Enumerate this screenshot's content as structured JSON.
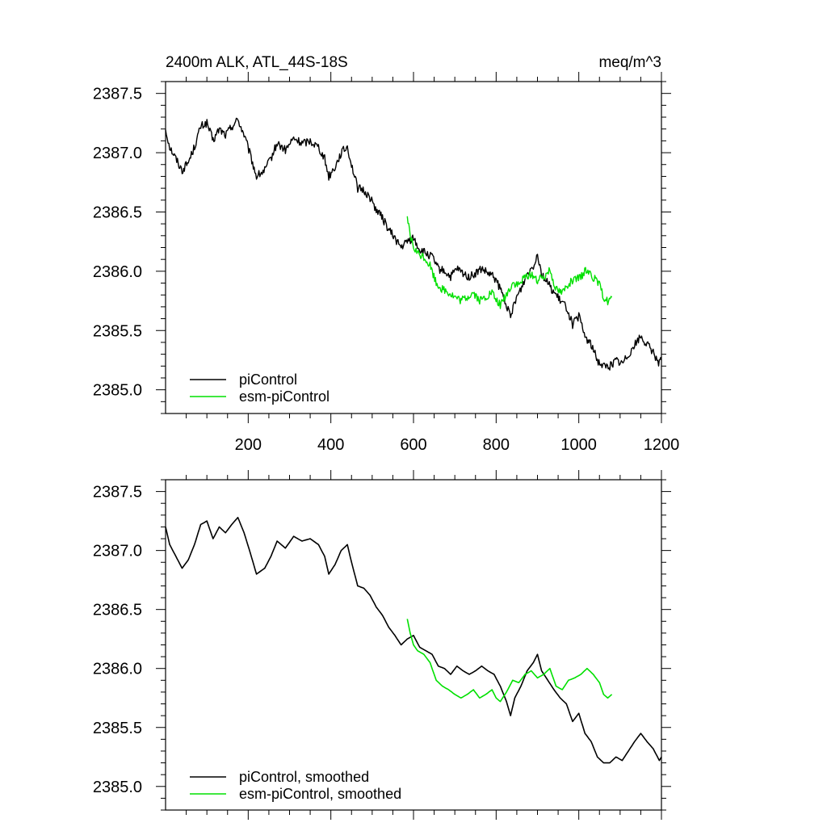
{
  "chart_data": [
    {
      "type": "line",
      "title": "2400m ALK, ATL_44S-18S",
      "units": "meq/m^3",
      "xlabel": "",
      "ylabel": "",
      "xlim": [
        0,
        1200
      ],
      "ylim": [
        2384.8,
        2387.6
      ],
      "x_ticks": [
        200,
        400,
        600,
        800,
        1000,
        1200
      ],
      "x_tick_labels": [
        "200",
        "400",
        "600",
        "800",
        "1000",
        "1200"
      ],
      "y_ticks": [
        2385.0,
        2385.5,
        2386.0,
        2386.5,
        2387.0,
        2387.5
      ],
      "y_tick_labels": [
        "2385.0",
        "2385.5",
        "2386.0",
        "2386.5",
        "2387.0",
        "2387.5"
      ],
      "grid": false,
      "legend_position": "bottom-left",
      "smoothed": false,
      "series": [
        {
          "name": "piControl",
          "color": "#000000",
          "points": [
            [
              0,
              2387.2
            ],
            [
              10,
              2387.05
            ],
            [
              25,
              2386.95
            ],
            [
              40,
              2386.85
            ],
            [
              55,
              2386.92
            ],
            [
              70,
              2387.05
            ],
            [
              85,
              2387.22
            ],
            [
              100,
              2387.25
            ],
            [
              115,
              2387.1
            ],
            [
              130,
              2387.2
            ],
            [
              145,
              2387.15
            ],
            [
              160,
              2387.22
            ],
            [
              175,
              2387.28
            ],
            [
              190,
              2387.15
            ],
            [
              205,
              2386.98
            ],
            [
              220,
              2386.8
            ],
            [
              240,
              2386.85
            ],
            [
              255,
              2386.95
            ],
            [
              270,
              2387.08
            ],
            [
              290,
              2387.02
            ],
            [
              310,
              2387.12
            ],
            [
              330,
              2387.08
            ],
            [
              350,
              2387.1
            ],
            [
              370,
              2387.05
            ],
            [
              385,
              2386.95
            ],
            [
              395,
              2386.8
            ],
            [
              410,
              2386.88
            ],
            [
              425,
              2387.0
            ],
            [
              440,
              2387.05
            ],
            [
              450,
              2386.9
            ],
            [
              465,
              2386.7
            ],
            [
              480,
              2386.68
            ],
            [
              495,
              2386.62
            ],
            [
              510,
              2386.52
            ],
            [
              525,
              2386.45
            ],
            [
              540,
              2386.35
            ],
            [
              555,
              2386.28
            ],
            [
              570,
              2386.2
            ],
            [
              585,
              2386.25
            ],
            [
              600,
              2386.28
            ],
            [
              615,
              2386.18
            ],
            [
              630,
              2386.15
            ],
            [
              645,
              2386.12
            ],
            [
              660,
              2386.02
            ],
            [
              675,
              2386.0
            ],
            [
              690,
              2385.95
            ],
            [
              705,
              2386.02
            ],
            [
              720,
              2385.98
            ],
            [
              735,
              2385.95
            ],
            [
              750,
              2385.98
            ],
            [
              765,
              2386.02
            ],
            [
              780,
              2385.98
            ],
            [
              795,
              2385.95
            ],
            [
              810,
              2385.85
            ],
            [
              825,
              2385.72
            ],
            [
              835,
              2385.6
            ],
            [
              845,
              2385.75
            ],
            [
              860,
              2385.85
            ],
            [
              875,
              2385.98
            ],
            [
              890,
              2386.05
            ],
            [
              900,
              2386.15
            ],
            [
              910,
              2385.98
            ],
            [
              925,
              2385.9
            ],
            [
              940,
              2385.82
            ],
            [
              955,
              2385.75
            ],
            [
              970,
              2385.7
            ],
            [
              985,
              2385.55
            ],
            [
              1000,
              2385.62
            ],
            [
              1015,
              2385.45
            ],
            [
              1030,
              2385.38
            ],
            [
              1045,
              2385.25
            ],
            [
              1060,
              2385.2
            ],
            [
              1075,
              2385.2
            ],
            [
              1090,
              2385.25
            ],
            [
              1105,
              2385.22
            ],
            [
              1120,
              2385.3
            ],
            [
              1135,
              2385.38
            ],
            [
              1150,
              2385.45
            ],
            [
              1165,
              2385.38
            ],
            [
              1180,
              2385.32
            ],
            [
              1195,
              2385.22
            ],
            [
              1200,
              2385.25
            ]
          ]
        },
        {
          "name": "esm-piControl",
          "color": "#00e000",
          "points": [
            [
              585,
              2386.45
            ],
            [
              592,
              2386.3
            ],
            [
              600,
              2386.2
            ],
            [
              610,
              2386.15
            ],
            [
              625,
              2386.12
            ],
            [
              640,
              2386.05
            ],
            [
              655,
              2385.9
            ],
            [
              670,
              2385.85
            ],
            [
              685,
              2385.82
            ],
            [
              700,
              2385.78
            ],
            [
              715,
              2385.75
            ],
            [
              730,
              2385.78
            ],
            [
              745,
              2385.82
            ],
            [
              760,
              2385.75
            ],
            [
              775,
              2385.78
            ],
            [
              790,
              2385.82
            ],
            [
              800,
              2385.75
            ],
            [
              810,
              2385.72
            ],
            [
              825,
              2385.8
            ],
            [
              840,
              2385.9
            ],
            [
              855,
              2385.88
            ],
            [
              870,
              2385.95
            ],
            [
              885,
              2385.98
            ],
            [
              900,
              2385.92
            ],
            [
              915,
              2385.95
            ],
            [
              930,
              2386.02
            ],
            [
              945,
              2385.85
            ],
            [
              960,
              2385.82
            ],
            [
              975,
              2385.9
            ],
            [
              990,
              2385.92
            ],
            [
              1005,
              2385.95
            ],
            [
              1020,
              2386.02
            ],
            [
              1035,
              2385.95
            ],
            [
              1050,
              2385.88
            ],
            [
              1060,
              2385.78
            ],
            [
              1070,
              2385.75
            ],
            [
              1080,
              2385.78
            ]
          ]
        }
      ]
    },
    {
      "type": "line",
      "title": "",
      "units": "",
      "xlabel": "",
      "ylabel": "",
      "xlim": [
        0,
        1200
      ],
      "ylim": [
        2384.8,
        2387.6
      ],
      "x_ticks": [
        200,
        400,
        600,
        800,
        1000,
        1200
      ],
      "x_tick_labels": [],
      "y_ticks": [
        2385.0,
        2385.5,
        2386.0,
        2386.5,
        2387.0,
        2387.5
      ],
      "y_tick_labels": [
        "2385.0",
        "2385.5",
        "2386.0",
        "2386.5",
        "2387.0",
        "2387.5"
      ],
      "grid": false,
      "legend_position": "bottom-left",
      "smoothed": true,
      "series": [
        {
          "name": "piControl, smoothed",
          "color": "#000000",
          "points": [
            [
              0,
              2387.2
            ],
            [
              10,
              2387.05
            ],
            [
              25,
              2386.95
            ],
            [
              40,
              2386.85
            ],
            [
              55,
              2386.92
            ],
            [
              70,
              2387.05
            ],
            [
              85,
              2387.22
            ],
            [
              100,
              2387.25
            ],
            [
              115,
              2387.1
            ],
            [
              130,
              2387.2
            ],
            [
              145,
              2387.15
            ],
            [
              160,
              2387.22
            ],
            [
              175,
              2387.28
            ],
            [
              190,
              2387.15
            ],
            [
              205,
              2386.98
            ],
            [
              220,
              2386.8
            ],
            [
              240,
              2386.85
            ],
            [
              255,
              2386.95
            ],
            [
              270,
              2387.08
            ],
            [
              290,
              2387.02
            ],
            [
              310,
              2387.12
            ],
            [
              330,
              2387.08
            ],
            [
              350,
              2387.1
            ],
            [
              370,
              2387.05
            ],
            [
              385,
              2386.95
            ],
            [
              395,
              2386.8
            ],
            [
              410,
              2386.88
            ],
            [
              425,
              2387.0
            ],
            [
              440,
              2387.05
            ],
            [
              450,
              2386.9
            ],
            [
              465,
              2386.7
            ],
            [
              480,
              2386.68
            ],
            [
              495,
              2386.62
            ],
            [
              510,
              2386.52
            ],
            [
              525,
              2386.45
            ],
            [
              540,
              2386.35
            ],
            [
              555,
              2386.28
            ],
            [
              570,
              2386.2
            ],
            [
              585,
              2386.25
            ],
            [
              600,
              2386.28
            ],
            [
              615,
              2386.18
            ],
            [
              630,
              2386.15
            ],
            [
              645,
              2386.12
            ],
            [
              660,
              2386.02
            ],
            [
              675,
              2386.0
            ],
            [
              690,
              2385.95
            ],
            [
              705,
              2386.02
            ],
            [
              720,
              2385.98
            ],
            [
              735,
              2385.95
            ],
            [
              750,
              2385.98
            ],
            [
              765,
              2386.02
            ],
            [
              780,
              2385.98
            ],
            [
              795,
              2385.95
            ],
            [
              810,
              2385.85
            ],
            [
              825,
              2385.72
            ],
            [
              835,
              2385.6
            ],
            [
              845,
              2385.75
            ],
            [
              860,
              2385.85
            ],
            [
              875,
              2385.98
            ],
            [
              890,
              2386.05
            ],
            [
              900,
              2386.12
            ],
            [
              910,
              2385.98
            ],
            [
              925,
              2385.9
            ],
            [
              940,
              2385.82
            ],
            [
              955,
              2385.75
            ],
            [
              970,
              2385.7
            ],
            [
              985,
              2385.55
            ],
            [
              1000,
              2385.62
            ],
            [
              1015,
              2385.45
            ],
            [
              1030,
              2385.38
            ],
            [
              1045,
              2385.25
            ],
            [
              1060,
              2385.2
            ],
            [
              1075,
              2385.2
            ],
            [
              1090,
              2385.25
            ],
            [
              1105,
              2385.22
            ],
            [
              1120,
              2385.3
            ],
            [
              1135,
              2385.38
            ],
            [
              1150,
              2385.45
            ],
            [
              1165,
              2385.38
            ],
            [
              1180,
              2385.32
            ],
            [
              1195,
              2385.22
            ],
            [
              1200,
              2385.25
            ]
          ]
        },
        {
          "name": "esm-piControl, smoothed",
          "color": "#00e000",
          "points": [
            [
              585,
              2386.42
            ],
            [
              592,
              2386.3
            ],
            [
              600,
              2386.2
            ],
            [
              610,
              2386.15
            ],
            [
              625,
              2386.12
            ],
            [
              640,
              2386.05
            ],
            [
              655,
              2385.9
            ],
            [
              670,
              2385.85
            ],
            [
              685,
              2385.82
            ],
            [
              700,
              2385.78
            ],
            [
              715,
              2385.75
            ],
            [
              730,
              2385.78
            ],
            [
              745,
              2385.82
            ],
            [
              760,
              2385.75
            ],
            [
              775,
              2385.78
            ],
            [
              790,
              2385.82
            ],
            [
              800,
              2385.75
            ],
            [
              810,
              2385.72
            ],
            [
              825,
              2385.8
            ],
            [
              840,
              2385.9
            ],
            [
              855,
              2385.88
            ],
            [
              870,
              2385.95
            ],
            [
              885,
              2385.98
            ],
            [
              900,
              2385.92
            ],
            [
              915,
              2385.95
            ],
            [
              930,
              2386.0
            ],
            [
              945,
              2385.85
            ],
            [
              960,
              2385.82
            ],
            [
              975,
              2385.9
            ],
            [
              990,
              2385.92
            ],
            [
              1005,
              2385.95
            ],
            [
              1020,
              2386.0
            ],
            [
              1035,
              2385.95
            ],
            [
              1050,
              2385.88
            ],
            [
              1060,
              2385.78
            ],
            [
              1070,
              2385.75
            ],
            [
              1080,
              2385.78
            ]
          ]
        }
      ]
    }
  ]
}
